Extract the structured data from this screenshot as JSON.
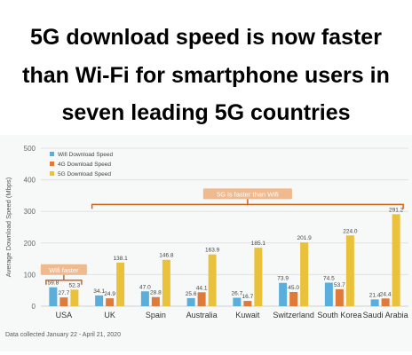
{
  "headline": {
    "line1": "5G download speed is now faster",
    "line2": "than Wi-Fi for smartphone users in",
    "line3": "seven leading 5G countries"
  },
  "source_note": "Data collected January 22 - April 21, 2020",
  "colors": {
    "wifi": "#5aaedc",
    "g4": "#e07a3a",
    "g5": "#eac13a",
    "annotation": "#c9651f",
    "background": "#f7f8f8"
  },
  "chart_data": {
    "type": "bar",
    "title": "",
    "xlabel": "",
    "ylabel": "Average Download Speed (Mbps)",
    "ylim": [
      0,
      500
    ],
    "yticks": [
      0,
      100,
      200,
      300,
      400,
      500
    ],
    "grid": true,
    "legend_position": "top-left",
    "categories": [
      "USA",
      "UK",
      "Spain",
      "Australia",
      "Kuwait",
      "Switzerland",
      "South Korea",
      "Saudi Arabia"
    ],
    "series": [
      {
        "name": "Wifi Download Speed",
        "color": "#5aaedc",
        "values": [
          59.8,
          34.1,
          47.0,
          25.6,
          26.7,
          73.9,
          74.5,
          21.4
        ]
      },
      {
        "name": "4G Download Speed",
        "color": "#e07a3a",
        "values": [
          27.7,
          24.9,
          28.8,
          44.1,
          16.7,
          45.0,
          53.7,
          24.4
        ]
      },
      {
        "name": "5G Download Speed",
        "color": "#eac13a",
        "values": [
          52.3,
          138.1,
          146.8,
          163.9,
          185.1,
          201.9,
          224.0,
          291.2
        ]
      }
    ],
    "value_labels": [
      [
        "59.8",
        "34.1",
        "47.0",
        "25.6",
        "26.7",
        "73.9",
        "74.5",
        "21.4"
      ],
      [
        "27.7",
        "24.9",
        "28.8",
        "44.1",
        "16.7",
        "45.0",
        "53.7",
        "24.4"
      ],
      [
        "52.3",
        "138.1",
        "146.8",
        "163.9",
        "185.1",
        "201.9",
        "224.0",
        "291.2"
      ]
    ],
    "annotations": [
      {
        "text": "Wifi faster",
        "categories": [
          "USA"
        ]
      },
      {
        "text": "5G is faster than Wifi",
        "categories": [
          "UK",
          "Spain",
          "Australia",
          "Kuwait",
          "Switzerland",
          "South Korea",
          "Saudi Arabia"
        ]
      }
    ]
  }
}
